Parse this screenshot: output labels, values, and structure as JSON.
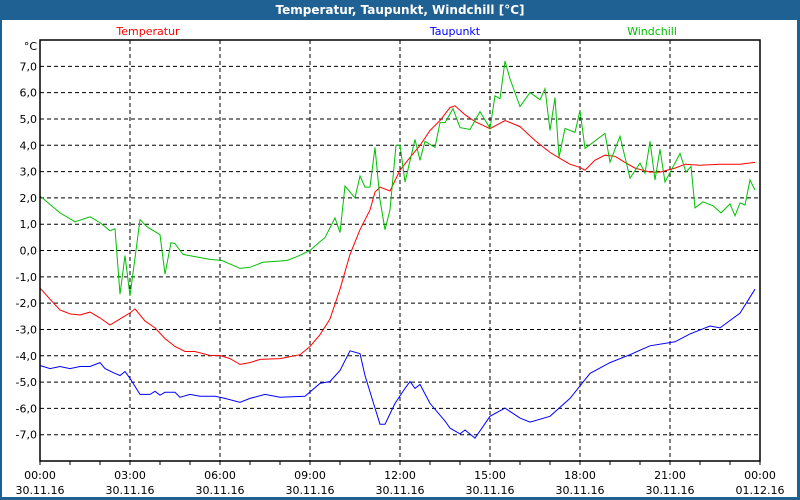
{
  "window": {
    "title": "Temperatur, Taupunkt, Windchill [°C]"
  },
  "chart_data": {
    "type": "line",
    "title": "Temperatur, Taupunkt, Windchill [°C]",
    "ylabel": "°C",
    "ylim": [
      -8,
      8
    ],
    "xlim": [
      "30.11.16 00:00",
      "01.12.16 00:00"
    ],
    "grid": true,
    "legend": "top",
    "yticks": [
      "-7,0",
      "-6,0",
      "-5,0",
      "-4,0",
      "-3,0",
      "-2,0",
      "-1,0",
      "0,0",
      "1,0",
      "2,0",
      "3,0",
      "4,0",
      "5,0",
      "6,0",
      "7,0"
    ],
    "ytick_values": [
      -7,
      -6,
      -5,
      -4,
      -3,
      -2,
      -1,
      0,
      1,
      2,
      3,
      4,
      5,
      6,
      7
    ],
    "xticks": [
      {
        "time": "00:00",
        "date": "30.11.16"
      },
      {
        "time": "03:00",
        "date": "30.11.16"
      },
      {
        "time": "06:00",
        "date": "30.11.16"
      },
      {
        "time": "09:00",
        "date": "30.11.16"
      },
      {
        "time": "12:00",
        "date": "30.11.16"
      },
      {
        "time": "15:00",
        "date": "30.11.16"
      },
      {
        "time": "18:00",
        "date": "30.11.16"
      },
      {
        "time": "21:00",
        "date": "30.11.16"
      },
      {
        "time": "00:00",
        "date": "01.12.16"
      }
    ],
    "series": [
      {
        "name": "Temperatur",
        "color": "#ff0000",
        "points": [
          [
            "00:00",
            -1.43
          ],
          [
            "00:20",
            -1.85
          ],
          [
            "00:40",
            -2.26
          ],
          [
            "01:00",
            -2.41
          ],
          [
            "01:20",
            -2.45
          ],
          [
            "01:40",
            -2.34
          ],
          [
            "02:00",
            -2.56
          ],
          [
            "02:20",
            -2.83
          ],
          [
            "02:40",
            -2.6
          ],
          [
            "03:00",
            -2.37
          ],
          [
            "03:10",
            -2.22
          ],
          [
            "03:30",
            -2.68
          ],
          [
            "03:50",
            -2.94
          ],
          [
            "04:10",
            -3.35
          ],
          [
            "04:30",
            -3.65
          ],
          [
            "04:50",
            -3.84
          ],
          [
            "05:10",
            -3.84
          ],
          [
            "05:40",
            -3.99
          ],
          [
            "06:00",
            -3.99
          ],
          [
            "06:20",
            -4.11
          ],
          [
            "06:40",
            -4.33
          ],
          [
            "07:00",
            -4.26
          ],
          [
            "07:20",
            -4.14
          ],
          [
            "08:00",
            -4.11
          ],
          [
            "08:40",
            -3.96
          ],
          [
            "09:00",
            -3.65
          ],
          [
            "09:20",
            -3.2
          ],
          [
            "09:40",
            -2.6
          ],
          [
            "10:00",
            -1.47
          ],
          [
            "10:20",
            -0.15
          ],
          [
            "10:40",
            0.79
          ],
          [
            "11:00",
            1.54
          ],
          [
            "11:10",
            2.22
          ],
          [
            "11:20",
            2.41
          ],
          [
            "11:40",
            2.26
          ],
          [
            "12:00",
            3.05
          ],
          [
            "12:20",
            3.54
          ],
          [
            "12:40",
            3.99
          ],
          [
            "13:00",
            4.56
          ],
          [
            "13:20",
            4.94
          ],
          [
            "13:40",
            5.43
          ],
          [
            "13:50",
            5.5
          ],
          [
            "14:10",
            5.16
          ],
          [
            "14:30",
            4.9
          ],
          [
            "15:00",
            4.63
          ],
          [
            "15:30",
            4.94
          ],
          [
            "16:00",
            4.71
          ],
          [
            "16:30",
            4.18
          ],
          [
            "17:00",
            3.73
          ],
          [
            "17:20",
            3.5
          ],
          [
            "17:40",
            3.28
          ],
          [
            "18:00",
            3.16
          ],
          [
            "18:10",
            3.05
          ],
          [
            "18:30",
            3.43
          ],
          [
            "18:50",
            3.62
          ],
          [
            "19:10",
            3.58
          ],
          [
            "19:30",
            3.35
          ],
          [
            "19:50",
            3.13
          ],
          [
            "20:20",
            2.98
          ],
          [
            "20:40",
            2.98
          ],
          [
            "21:10",
            3.13
          ],
          [
            "21:30",
            3.28
          ],
          [
            "22:00",
            3.24
          ],
          [
            "22:40",
            3.28
          ],
          [
            "23:20",
            3.28
          ],
          [
            "23:50",
            3.35
          ]
        ]
      },
      {
        "name": "Taupunkt",
        "color": "#0000ff",
        "points": [
          [
            "00:00",
            -4.37
          ],
          [
            "00:20",
            -4.49
          ],
          [
            "00:40",
            -4.41
          ],
          [
            "01:00",
            -4.49
          ],
          [
            "01:20",
            -4.41
          ],
          [
            "01:40",
            -4.41
          ],
          [
            "02:00",
            -4.26
          ],
          [
            "02:10",
            -4.49
          ],
          [
            "02:30",
            -4.67
          ],
          [
            "02:40",
            -4.75
          ],
          [
            "02:50",
            -4.6
          ],
          [
            "03:00",
            -4.86
          ],
          [
            "03:20",
            -5.47
          ],
          [
            "03:40",
            -5.47
          ],
          [
            "03:50",
            -5.35
          ],
          [
            "04:00",
            -5.5
          ],
          [
            "04:10",
            -5.39
          ],
          [
            "04:30",
            -5.39
          ],
          [
            "04:40",
            -5.58
          ],
          [
            "05:00",
            -5.47
          ],
          [
            "05:20",
            -5.54
          ],
          [
            "05:50",
            -5.54
          ],
          [
            "06:10",
            -5.62
          ],
          [
            "06:40",
            -5.77
          ],
          [
            "07:00",
            -5.62
          ],
          [
            "07:30",
            -5.47
          ],
          [
            "08:00",
            -5.58
          ],
          [
            "08:50",
            -5.54
          ],
          [
            "09:20",
            -5.05
          ],
          [
            "09:40",
            -4.98
          ],
          [
            "10:00",
            -4.56
          ],
          [
            "10:20",
            -3.81
          ],
          [
            "10:40",
            -3.92
          ],
          [
            "10:50",
            -4.75
          ],
          [
            "11:10",
            -5.99
          ],
          [
            "11:20",
            -6.6
          ],
          [
            "11:30",
            -6.6
          ],
          [
            "11:50",
            -5.81
          ],
          [
            "12:10",
            -5.24
          ],
          [
            "12:20",
            -4.98
          ],
          [
            "12:30",
            -5.24
          ],
          [
            "12:40",
            -5.09
          ],
          [
            "13:00",
            -5.81
          ],
          [
            "13:30",
            -6.48
          ],
          [
            "13:40",
            -6.75
          ],
          [
            "14:00",
            -6.97
          ],
          [
            "14:10",
            -6.82
          ],
          [
            "14:30",
            -7.13
          ],
          [
            "15:00",
            -6.3
          ],
          [
            "15:30",
            -5.99
          ],
          [
            "16:00",
            -6.37
          ],
          [
            "16:20",
            -6.52
          ],
          [
            "17:00",
            -6.3
          ],
          [
            "17:40",
            -5.62
          ],
          [
            "18:20",
            -4.67
          ],
          [
            "19:00",
            -4.26
          ],
          [
            "19:40",
            -3.96
          ],
          [
            "20:20",
            -3.62
          ],
          [
            "21:10",
            -3.47
          ],
          [
            "21:40",
            -3.17
          ],
          [
            "22:20",
            -2.87
          ],
          [
            "22:40",
            -2.94
          ],
          [
            "23:20",
            -2.38
          ],
          [
            "23:50",
            -1.47
          ]
        ]
      },
      {
        "name": "Windchill",
        "color": "#00c000",
        "points": [
          [
            "00:00",
            2.07
          ],
          [
            "00:40",
            1.43
          ],
          [
            "01:10",
            1.09
          ],
          [
            "01:40",
            1.28
          ],
          [
            "02:00",
            1.06
          ],
          [
            "02:20",
            0.75
          ],
          [
            "02:30",
            0.83
          ],
          [
            "02:40",
            -1.66
          ],
          [
            "02:50",
            -0.19
          ],
          [
            "03:00",
            -1.73
          ],
          [
            "03:20",
            1.17
          ],
          [
            "03:34",
            0.9
          ],
          [
            "04:00",
            0.6
          ],
          [
            "04:10",
            -0.9
          ],
          [
            "04:22",
            0.3
          ],
          [
            "04:30",
            0.26
          ],
          [
            "04:46",
            -0.15
          ],
          [
            "05:10",
            -0.23
          ],
          [
            "05:40",
            -0.34
          ],
          [
            "06:04",
            -0.38
          ],
          [
            "06:40",
            -0.68
          ],
          [
            "07:00",
            -0.64
          ],
          [
            "07:26",
            -0.45
          ],
          [
            "08:14",
            -0.38
          ],
          [
            "08:34",
            -0.23
          ],
          [
            "09:00",
            0.0
          ],
          [
            "09:20",
            0.34
          ],
          [
            "09:30",
            0.49
          ],
          [
            "09:50",
            1.24
          ],
          [
            "10:00",
            0.68
          ],
          [
            "10:10",
            2.45
          ],
          [
            "10:30",
            2.0
          ],
          [
            "10:40",
            2.83
          ],
          [
            "10:50",
            2.41
          ],
          [
            "11:00",
            2.41
          ],
          [
            "11:10",
            3.92
          ],
          [
            "11:20",
            1.92
          ],
          [
            "11:30",
            0.79
          ],
          [
            "11:40",
            1.55
          ],
          [
            "11:52",
            4.0
          ],
          [
            "12:00",
            4.0
          ],
          [
            "12:10",
            2.6
          ],
          [
            "12:30",
            4.22
          ],
          [
            "12:40",
            3.43
          ],
          [
            "12:50",
            4.15
          ],
          [
            "13:10",
            3.92
          ],
          [
            "13:20",
            4.86
          ],
          [
            "13:30",
            4.86
          ],
          [
            "13:46",
            5.39
          ],
          [
            "14:00",
            4.67
          ],
          [
            "14:20",
            4.6
          ],
          [
            "14:40",
            5.28
          ],
          [
            "15:00",
            4.64
          ],
          [
            "15:10",
            5.88
          ],
          [
            "15:20",
            5.77
          ],
          [
            "15:30",
            7.2
          ],
          [
            "15:40",
            6.52
          ],
          [
            "16:00",
            5.47
          ],
          [
            "16:20",
            6.0
          ],
          [
            "16:40",
            5.73
          ],
          [
            "16:50",
            6.15
          ],
          [
            "17:00",
            4.56
          ],
          [
            "17:10",
            5.81
          ],
          [
            "17:18",
            3.54
          ],
          [
            "17:30",
            4.64
          ],
          [
            "17:50",
            4.49
          ],
          [
            "18:00",
            5.32
          ],
          [
            "18:10",
            3.88
          ],
          [
            "18:50",
            4.45
          ],
          [
            "19:00",
            3.36
          ],
          [
            "19:20",
            4.34
          ],
          [
            "19:40",
            2.75
          ],
          [
            "20:00",
            3.32
          ],
          [
            "20:10",
            2.94
          ],
          [
            "20:20",
            4.15
          ],
          [
            "20:30",
            2.68
          ],
          [
            "20:40",
            3.85
          ],
          [
            "20:50",
            2.6
          ],
          [
            "21:20",
            3.69
          ],
          [
            "21:32",
            2.98
          ],
          [
            "21:42",
            3.2
          ],
          [
            "21:50",
            1.62
          ],
          [
            "22:06",
            1.85
          ],
          [
            "22:26",
            1.7
          ],
          [
            "22:42",
            1.43
          ],
          [
            "23:00",
            1.77
          ],
          [
            "23:10",
            1.32
          ],
          [
            "23:20",
            1.81
          ],
          [
            "23:30",
            1.73
          ],
          [
            "23:40",
            2.68
          ],
          [
            "23:50",
            2.3
          ]
        ]
      }
    ]
  }
}
